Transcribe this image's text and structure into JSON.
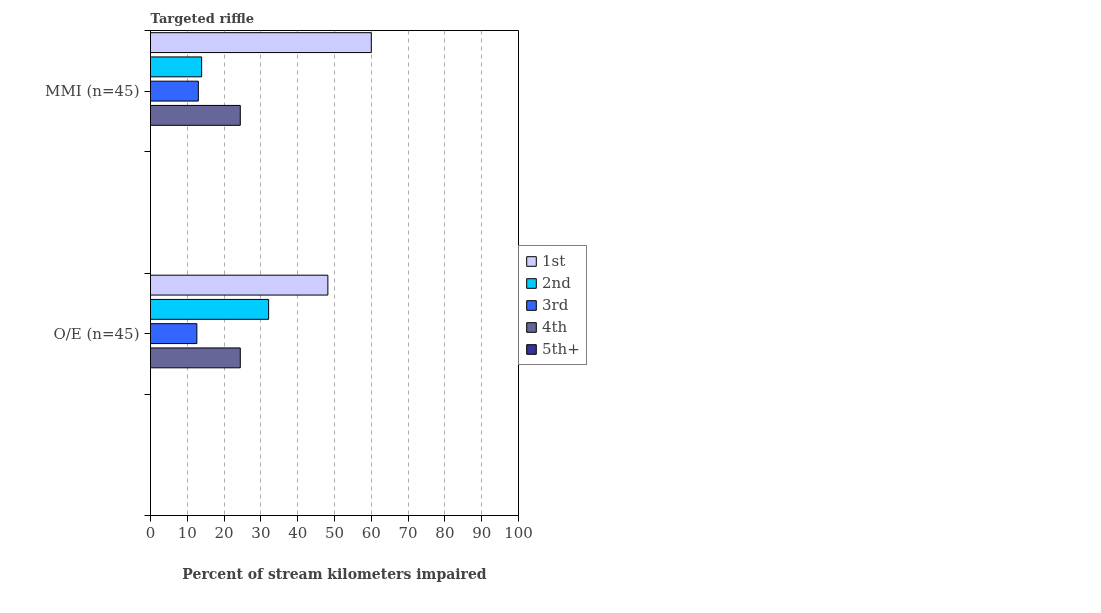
{
  "chart_data": {
    "type": "bar",
    "orientation": "horizontal",
    "title": "Targeted riffle",
    "xlabel": "Percent of stream kilometers impaired",
    "categories": [
      "MMI (n=45)",
      "O/E (n=45)"
    ],
    "series": [
      {
        "name": "1st",
        "color": "#ccccff",
        "values": [
          60,
          48.2
        ]
      },
      {
        "name": "2nd",
        "color": "#00ccff",
        "values": [
          13.9,
          32.1
        ]
      },
      {
        "name": "3rd",
        "color": "#3366ff",
        "values": [
          13,
          12.6
        ]
      },
      {
        "name": "4th",
        "color": "#666699",
        "values": [
          24.4,
          24.4
        ]
      },
      {
        "name": "5th+",
        "color": "#333399",
        "values": [
          null,
          null
        ]
      }
    ],
    "xlim": [
      0,
      100
    ],
    "xticks": [
      0,
      10,
      20,
      30,
      40,
      50,
      60,
      70,
      80,
      90,
      100
    ],
    "grid": "x",
    "legend": "right"
  }
}
